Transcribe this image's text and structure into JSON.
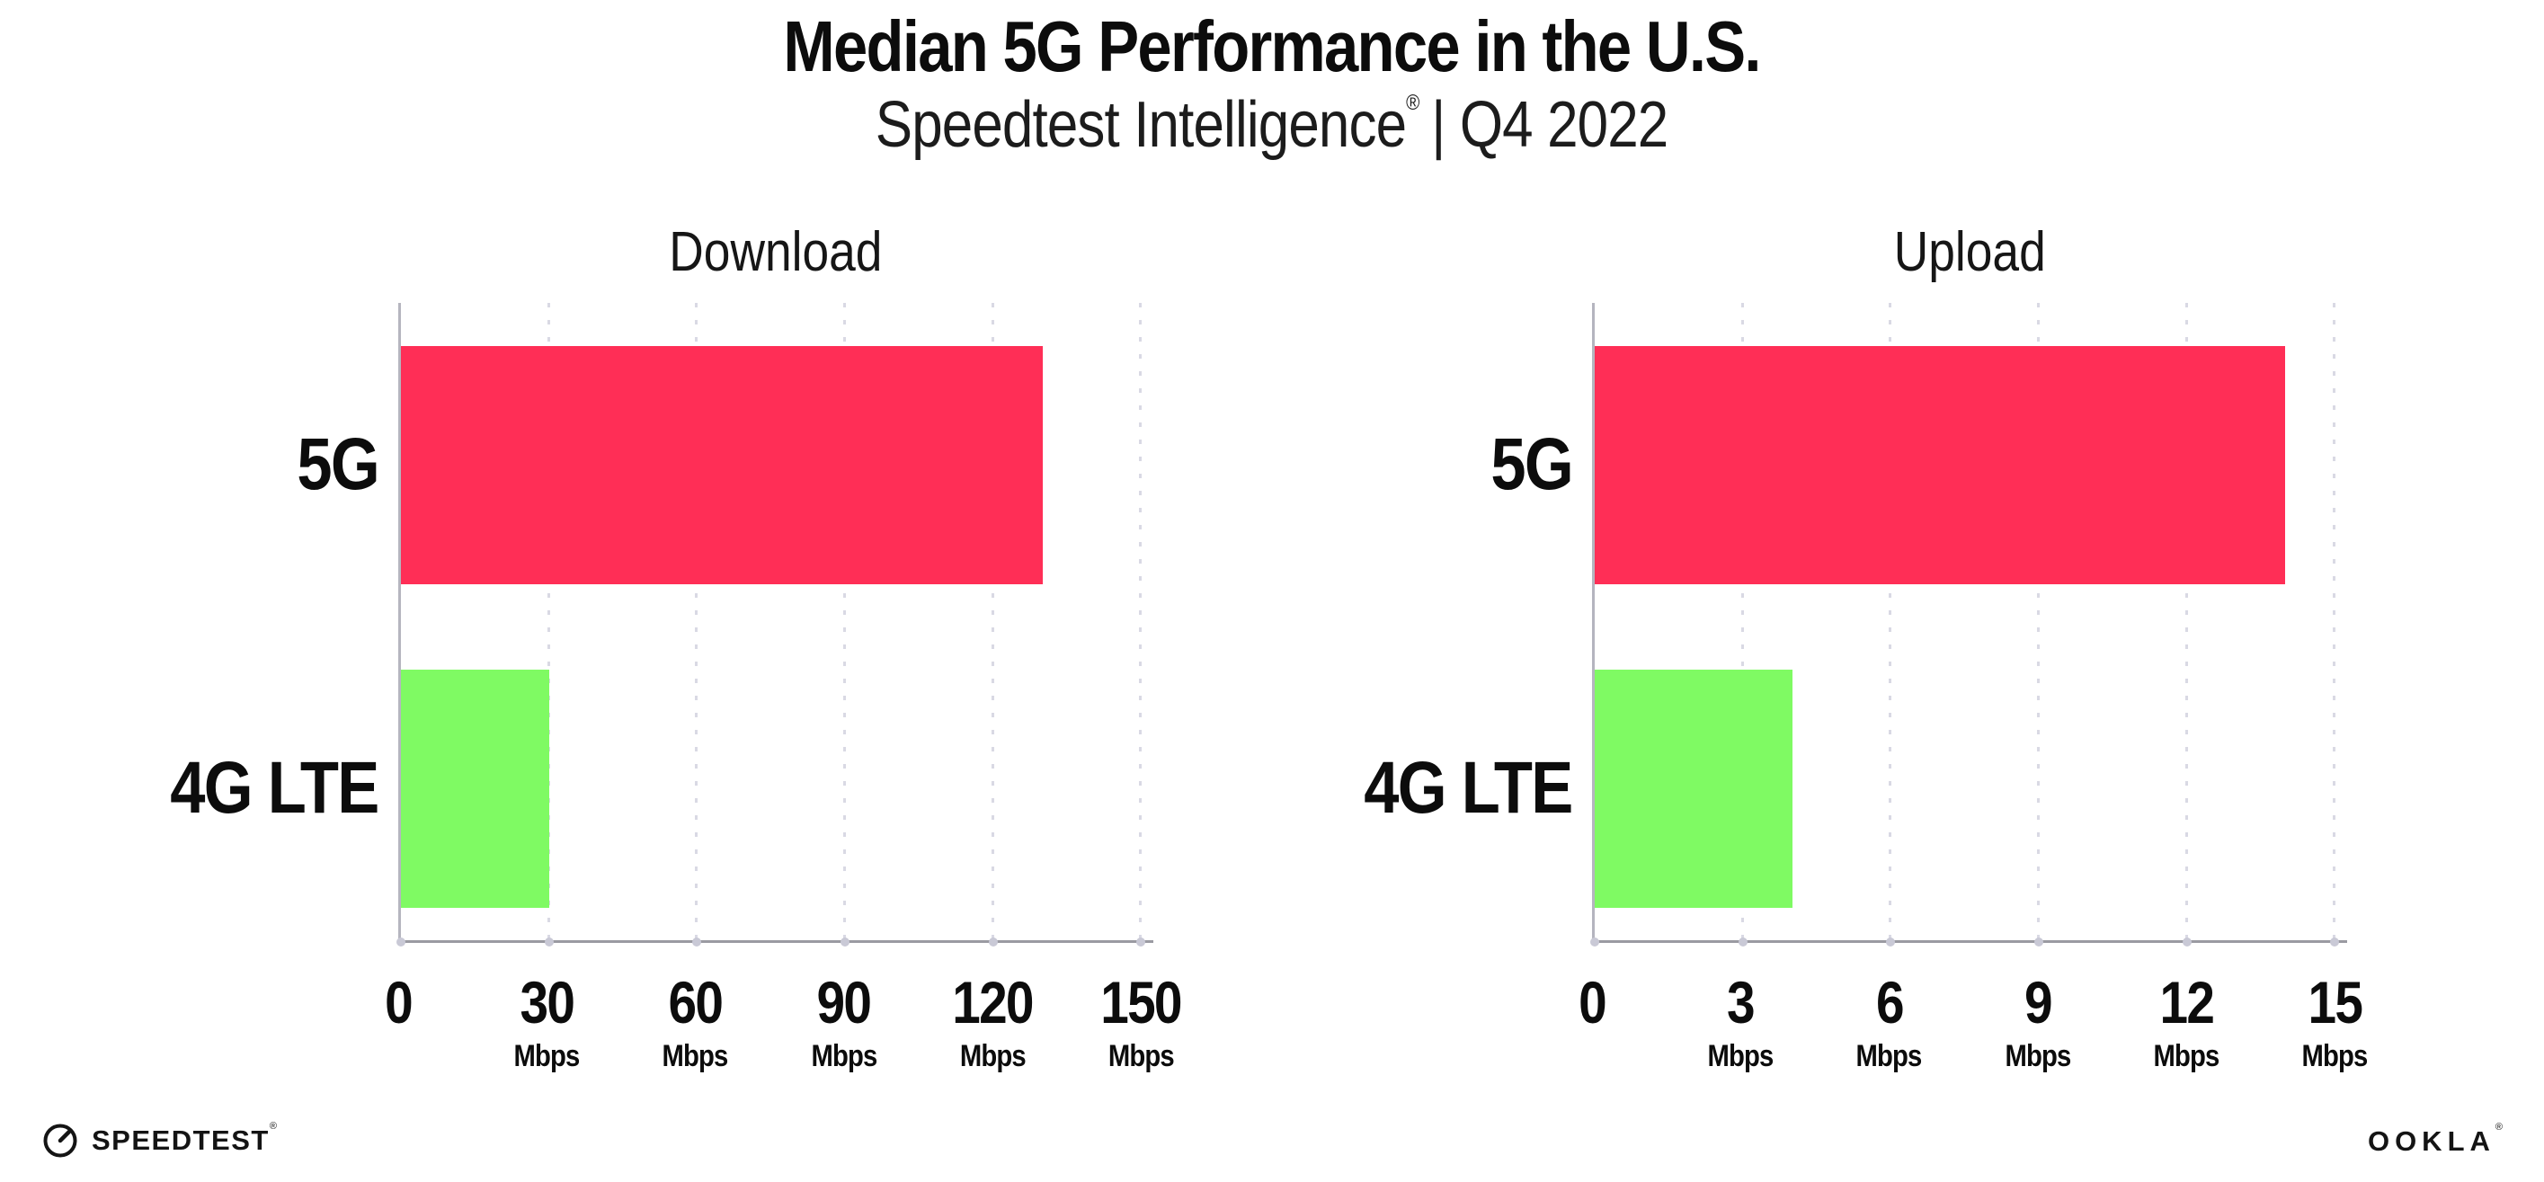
{
  "header": {
    "title": "Median 5G Performance in the U.S.",
    "subtitle_brand": "Speedtest Intelligence",
    "subtitle_reg": "®",
    "subtitle_period": "| Q4 2022"
  },
  "chart_data": [
    {
      "type": "bar",
      "orientation": "horizontal",
      "title": "Download",
      "categories": [
        "5G",
        "4G LTE"
      ],
      "values": [
        130,
        30
      ],
      "unit": "Mbps",
      "xlabel": "",
      "ylabel": "",
      "xlim": [
        0,
        152.5
      ],
      "ticks": [
        0,
        30,
        60,
        90,
        120,
        150
      ],
      "tick_unit_suffix": "Mbps",
      "unit_shown_on_zero": false,
      "bar_colors": [
        "#FF2E56",
        "#7FFA63"
      ],
      "grid": "dotted-vertical",
      "legend": "none"
    },
    {
      "type": "bar",
      "orientation": "horizontal",
      "title": "Upload",
      "categories": [
        "5G",
        "4G LTE"
      ],
      "values": [
        14,
        4
      ],
      "unit": "Mbps",
      "xlabel": "",
      "ylabel": "",
      "xlim": [
        0,
        15.25
      ],
      "ticks": [
        0,
        3,
        6,
        9,
        12,
        15
      ],
      "tick_unit_suffix": "Mbps",
      "unit_shown_on_zero": false,
      "bar_colors": [
        "#FF2E56",
        "#7FFA63"
      ],
      "grid": "dotted-vertical",
      "legend": "none"
    }
  ],
  "footer": {
    "speedtest_label": "SPEEDTEST",
    "speedtest_reg": "®",
    "ookla_label": "OOKLA",
    "ookla_reg": "®"
  },
  "colors": {
    "bar_5g": "#FF2E56",
    "bar_4g_lte": "#7FFA63",
    "axis_line": "#9a9aa2",
    "gridline": "#d9d9e4",
    "text": "#0c0c0c",
    "background": "#ffffff"
  }
}
